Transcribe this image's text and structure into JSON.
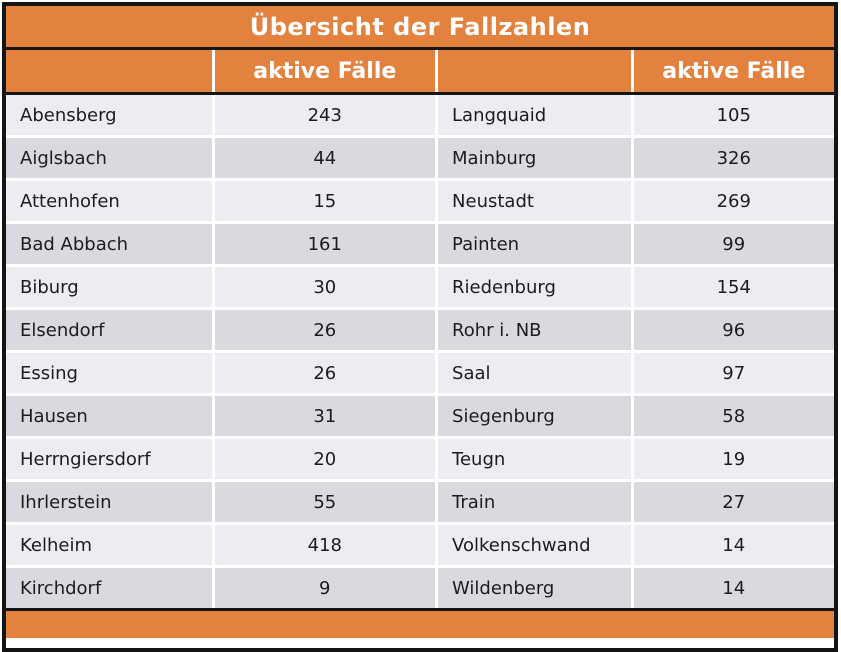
{
  "title": "Übersicht der Fallzahlen",
  "header": {
    "col1": "",
    "col2": "aktive Fälle",
    "col3": "",
    "col4": "aktive Fälle"
  },
  "rows": [
    {
      "left": {
        "name": "Abensberg",
        "value": "243"
      },
      "right": {
        "name": "Langquaid",
        "value": "105"
      }
    },
    {
      "left": {
        "name": "Aiglsbach",
        "value": "44"
      },
      "right": {
        "name": "Mainburg",
        "value": "326"
      }
    },
    {
      "left": {
        "name": "Attenhofen",
        "value": "15"
      },
      "right": {
        "name": "Neustadt",
        "value": "269"
      }
    },
    {
      "left": {
        "name": "Bad Abbach",
        "value": "161"
      },
      "right": {
        "name": "Painten",
        "value": "99"
      }
    },
    {
      "left": {
        "name": "Biburg",
        "value": "30"
      },
      "right": {
        "name": "Riedenburg",
        "value": "154"
      }
    },
    {
      "left": {
        "name": "Elsendorf",
        "value": "26"
      },
      "right": {
        "name": "Rohr i. NB",
        "value": "96"
      }
    },
    {
      "left": {
        "name": "Essing",
        "value": "26"
      },
      "right": {
        "name": "Saal",
        "value": "97"
      }
    },
    {
      "left": {
        "name": "Hausen",
        "value": "31"
      },
      "right": {
        "name": "Siegenburg",
        "value": "58"
      }
    },
    {
      "left": {
        "name": "Herrngiersdorf",
        "value": "20"
      },
      "right": {
        "name": "Teugn",
        "value": "19"
      }
    },
    {
      "left": {
        "name": "Ihrlerstein",
        "value": "55"
      },
      "right": {
        "name": "Train",
        "value": "27"
      }
    },
    {
      "left": {
        "name": "Kelheim",
        "value": "418"
      },
      "right": {
        "name": "Volkenschwand",
        "value": "14"
      }
    },
    {
      "left": {
        "name": "Kirchdorf",
        "value": "9"
      },
      "right": {
        "name": "Wildenberg",
        "value": "14"
      }
    }
  ],
  "colors": {
    "orange": "#e2823e",
    "row_light": "#ecedf1",
    "row_dark": "#d8dae0",
    "border_black": "#141414"
  }
}
